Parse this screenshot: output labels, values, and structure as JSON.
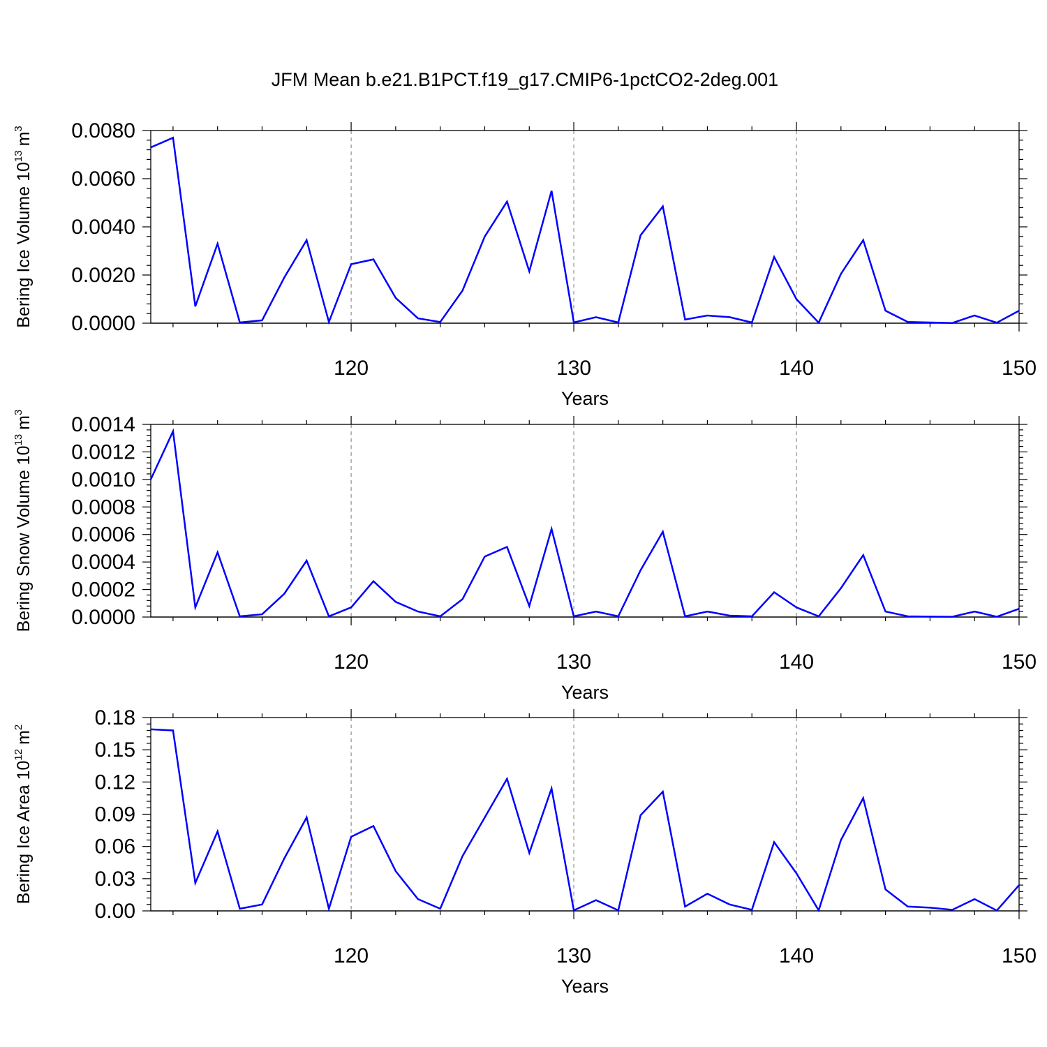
{
  "figure": {
    "title": "JFM Mean b.e21.B1PCT.f19_g17.CMIP6-1pctCO2-2deg.001"
  },
  "colors": {
    "series": "#0000ff",
    "grid": "#777777",
    "axes": "#000000"
  },
  "chart_data": [
    {
      "type": "line",
      "ylabel_main": "Bering Ice Volume 10",
      "ylabel_exp": "13",
      "ylabel_unit": "m",
      "ylabel_unit_exp": "3",
      "xlabel": "Years",
      "xlim": [
        111,
        150
      ],
      "ylim": [
        0,
        0.008
      ],
      "yticks": [
        0,
        0.002,
        0.004,
        0.006,
        0.008
      ],
      "ytick_labels": [
        "0.0000",
        "0.0020",
        "0.0040",
        "0.0060",
        "0.0080"
      ],
      "xticks": [
        120,
        130,
        140,
        150
      ],
      "xtick_labels": [
        "120",
        "130",
        "140",
        "150"
      ],
      "grid_x": [
        120,
        130,
        140
      ],
      "zero_line": true,
      "x": [
        111,
        112,
        113,
        114,
        115,
        116,
        117,
        118,
        119,
        120,
        121,
        122,
        123,
        124,
        125,
        126,
        127,
        128,
        129,
        130,
        131,
        132,
        133,
        134,
        135,
        136,
        137,
        138,
        139,
        140,
        141,
        142,
        143,
        144,
        145,
        146,
        147,
        148,
        149,
        150
      ],
      "series": [
        {
          "values": [
            0.0073,
            0.0077,
            0.0007,
            0.0033,
            3e-05,
            0.00012,
            0.0019,
            0.00345,
            5e-05,
            0.00245,
            0.00265,
            0.00105,
            0.0002,
            5e-05,
            0.00135,
            0.0036,
            0.00505,
            0.00215,
            0.0055,
            3e-05,
            0.00025,
            3e-05,
            0.00365,
            0.00485,
            0.00015,
            0.00032,
            0.00025,
            3e-05,
            0.00275,
            0.001,
            2e-05,
            0.00205,
            0.00345,
            0.00052,
            5e-05,
            3e-05,
            1e-05,
            0.00032,
            2e-05,
            0.00052
          ]
        }
      ]
    },
    {
      "type": "line",
      "ylabel_main": "Bering Snow Volume 10",
      "ylabel_exp": "13",
      "ylabel_unit": "m",
      "ylabel_unit_exp": "3",
      "xlabel": "Years",
      "xlim": [
        111,
        150
      ],
      "ylim": [
        0,
        0.0014
      ],
      "yticks": [
        0,
        0.0002,
        0.0004,
        0.0006,
        0.0008,
        0.001,
        0.0012,
        0.0014
      ],
      "ytick_labels": [
        "0.0000",
        "0.0002",
        "0.0004",
        "0.0006",
        "0.0008",
        "0.0010",
        "0.0012",
        "0.0014"
      ],
      "xticks": [
        120,
        130,
        140,
        150
      ],
      "xtick_labels": [
        "120",
        "130",
        "140",
        "150"
      ],
      "grid_x": [
        120,
        130,
        140
      ],
      "zero_line": true,
      "x": [
        111,
        112,
        113,
        114,
        115,
        116,
        117,
        118,
        119,
        120,
        121,
        122,
        123,
        124,
        125,
        126,
        127,
        128,
        129,
        130,
        131,
        132,
        133,
        134,
        135,
        136,
        137,
        138,
        139,
        140,
        141,
        142,
        143,
        144,
        145,
        146,
        147,
        148,
        149,
        150
      ],
      "series": [
        {
          "values": [
            0.001,
            0.00135,
            7e-05,
            0.00047,
            5e-06,
            2e-05,
            0.00017,
            0.00041,
            5e-06,
            7e-05,
            0.00026,
            0.00011,
            4e-05,
            5e-06,
            0.00013,
            0.00044,
            0.00051,
            8e-05,
            0.00064,
            5e-06,
            4e-05,
            5e-06,
            0.00034,
            0.00062,
            5e-06,
            4e-05,
            1e-05,
            5e-06,
            0.00018,
            7e-05,
            5e-06,
            0.00021,
            0.00045,
            4e-05,
            5e-06,
            3e-06,
            2e-06,
            4e-05,
            2e-06,
            6e-05
          ]
        }
      ]
    },
    {
      "type": "line",
      "ylabel_main": "Bering Ice Area 10",
      "ylabel_exp": "12",
      "ylabel_unit": "m",
      "ylabel_unit_exp": "2",
      "xlabel": "Years",
      "xlim": [
        111,
        150
      ],
      "ylim": [
        0,
        0.18
      ],
      "yticks": [
        0,
        0.03,
        0.06,
        0.09,
        0.12,
        0.15,
        0.18
      ],
      "ytick_labels": [
        "0.00",
        "0.03",
        "0.06",
        "0.09",
        "0.12",
        "0.15",
        "0.18"
      ],
      "xticks": [
        120,
        130,
        140,
        150
      ],
      "xtick_labels": [
        "120",
        "130",
        "140",
        "150"
      ],
      "grid_x": [
        120,
        130,
        140
      ],
      "zero_line": true,
      "x": [
        111,
        112,
        113,
        114,
        115,
        116,
        117,
        118,
        119,
        120,
        121,
        122,
        123,
        124,
        125,
        126,
        127,
        128,
        129,
        130,
        131,
        132,
        133,
        134,
        135,
        136,
        137,
        138,
        139,
        140,
        141,
        142,
        143,
        144,
        145,
        146,
        147,
        148,
        149,
        150
      ],
      "series": [
        {
          "values": [
            0.169,
            0.168,
            0.026,
            0.074,
            0.002,
            0.006,
            0.049,
            0.087,
            0.002,
            0.069,
            0.079,
            0.037,
            0.011,
            0.002,
            0.051,
            0.087,
            0.123,
            0.054,
            0.114,
            0.0005,
            0.01,
            0.0005,
            0.089,
            0.111,
            0.004,
            0.016,
            0.006,
            0.001,
            0.064,
            0.035,
            0.0005,
            0.066,
            0.105,
            0.02,
            0.004,
            0.003,
            0.001,
            0.011,
            0.0003,
            0.024
          ]
        }
      ]
    }
  ]
}
